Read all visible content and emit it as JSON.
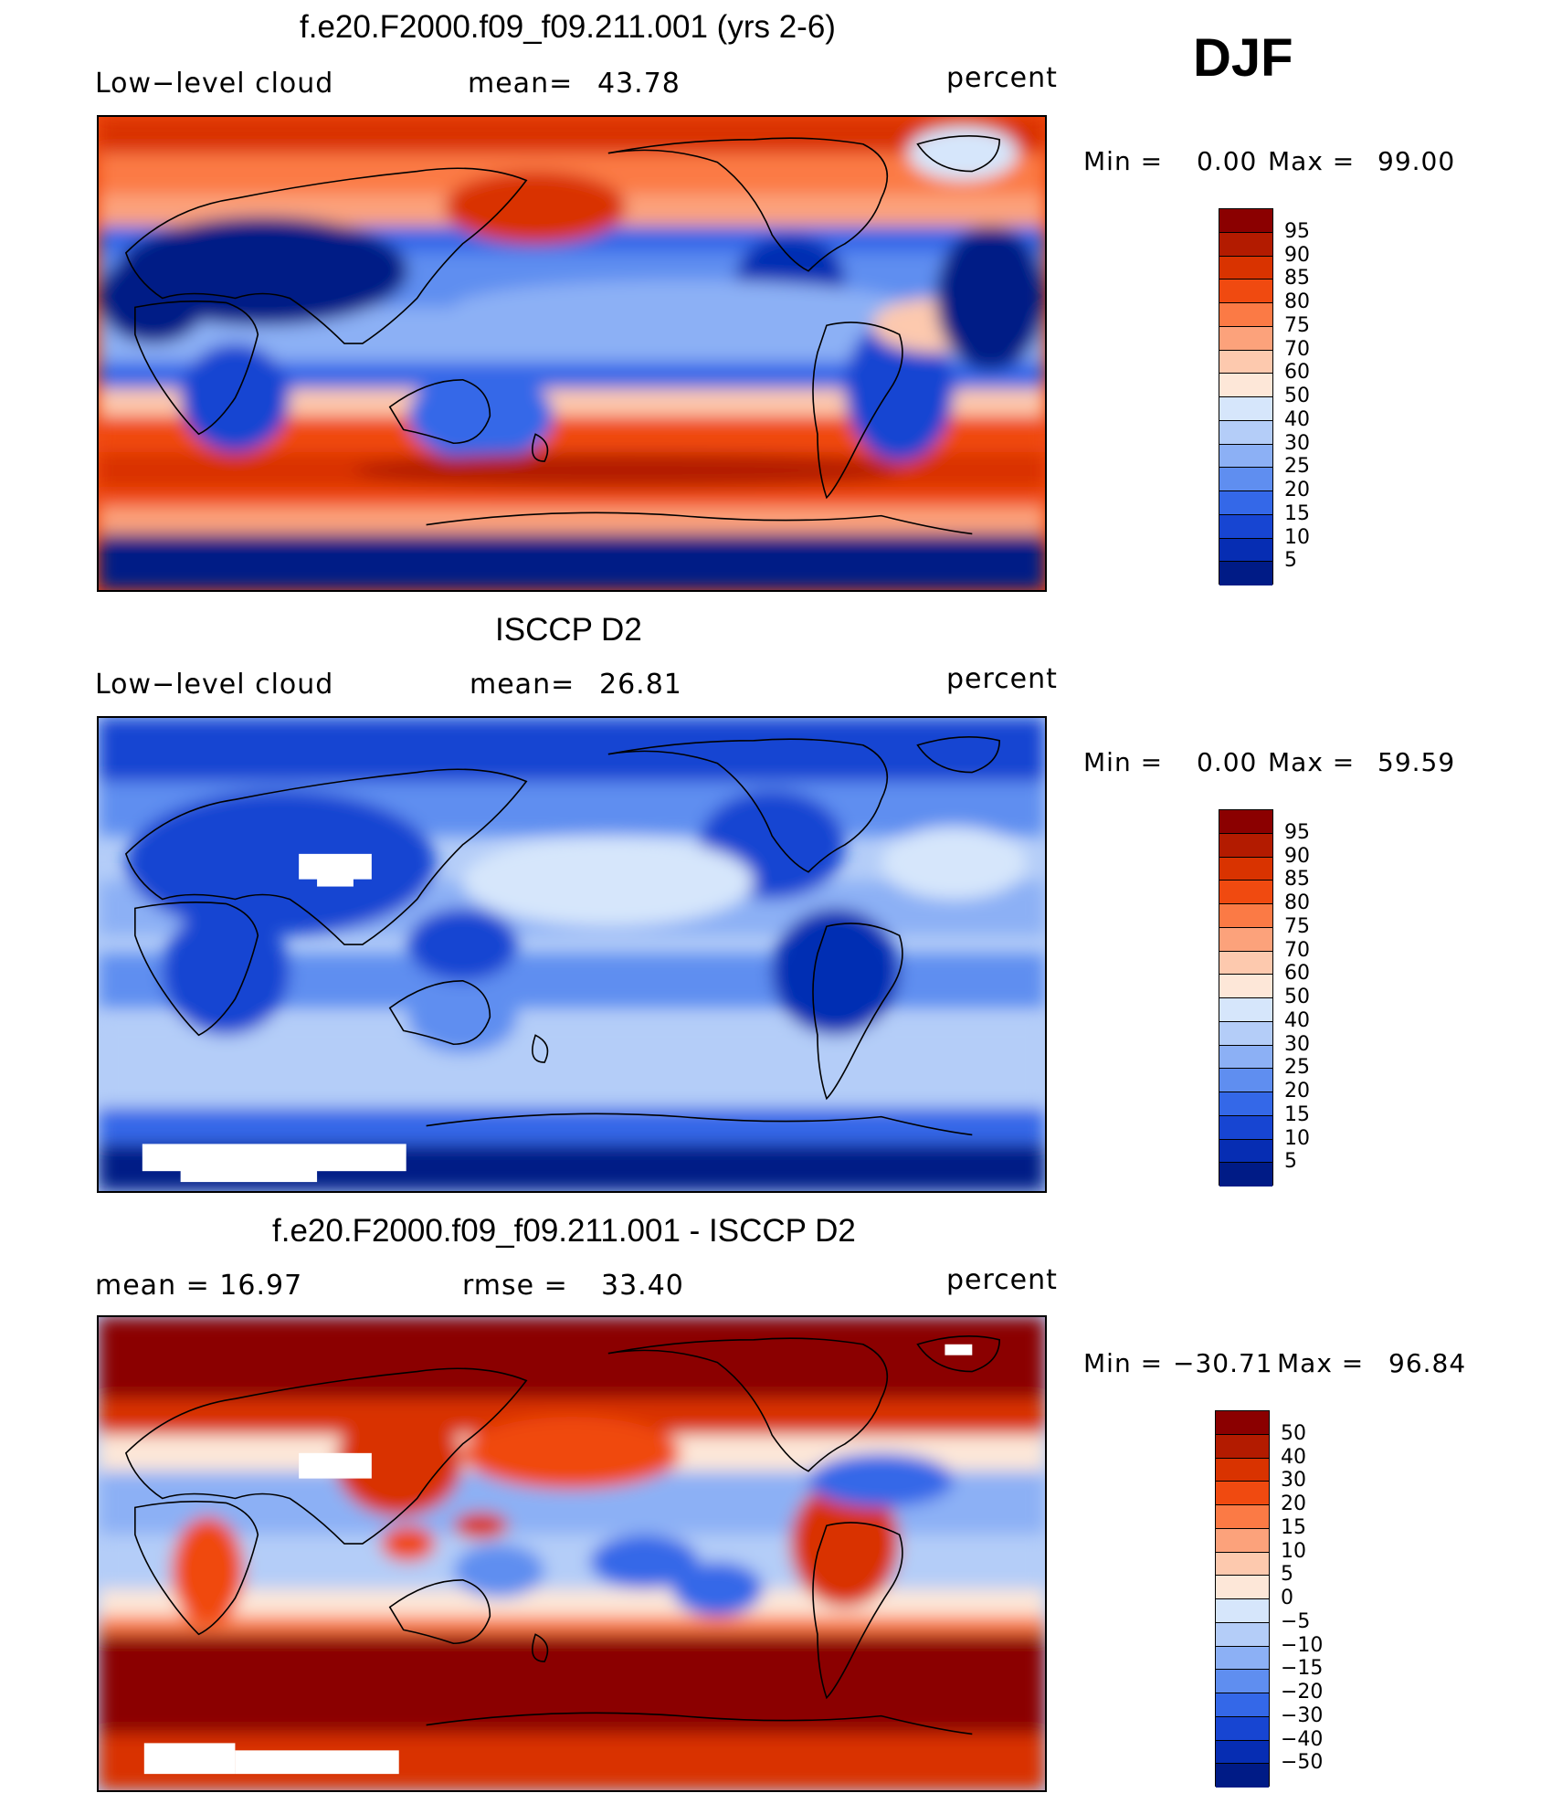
{
  "season": "DJF",
  "panels": [
    {
      "title": "f.e20.F2000.f09_f09.211.001 (yrs 2-6)",
      "left": "Low−level cloud",
      "center_label": "mean=",
      "center_value": "43.78",
      "units": "percent",
      "min_label": "Min  =",
      "min_value": "0.00",
      "max_label": "Max  =",
      "max_value": "99.00",
      "colorbar_ticks": [
        "95",
        "90",
        "85",
        "80",
        "75",
        "70",
        "60",
        "50",
        "40",
        "30",
        "25",
        "20",
        "15",
        "10",
        "5"
      ],
      "colorbar_colors": [
        "#8b0000",
        "#b31b00",
        "#d93300",
        "#f04a10",
        "#fb7a45",
        "#fca27b",
        "#fdc9ae",
        "#fde7d8",
        "#d6e6fb",
        "#b4cdf8",
        "#8cb0f5",
        "#5f8ef0",
        "#3468e8",
        "#1745d2",
        "#062db3",
        "#001b86"
      ]
    },
    {
      "title": "ISCCP D2",
      "left": "Low−level cloud",
      "center_label": "mean=",
      "center_value": "26.81",
      "units": "percent",
      "min_label": "Min  =",
      "min_value": "0.00",
      "max_label": "Max  =",
      "max_value": "59.59",
      "colorbar_ticks": [
        "95",
        "90",
        "85",
        "80",
        "75",
        "70",
        "60",
        "50",
        "40",
        "30",
        "25",
        "20",
        "15",
        "10",
        "5"
      ],
      "colorbar_colors": [
        "#8b0000",
        "#b31b00",
        "#d93300",
        "#f04a10",
        "#fb7a45",
        "#fca27b",
        "#fdc9ae",
        "#fde7d8",
        "#d6e6fb",
        "#b4cdf8",
        "#8cb0f5",
        "#5f8ef0",
        "#3468e8",
        "#1745d2",
        "#062db3",
        "#001b86"
      ]
    },
    {
      "title": "f.e20.F2000.f09_f09.211.001 - ISCCP D2",
      "left": "mean  =    16.97",
      "center_label": "rmse  =",
      "center_value": "33.40",
      "units": "percent",
      "min_label": "Min  =",
      "min_value": "−30.71",
      "max_label": "Max  =",
      "max_value": "96.84",
      "colorbar_ticks": [
        "50",
        "40",
        "30",
        "20",
        "15",
        "10",
        "5",
        "0",
        "−5",
        "−10",
        "−15",
        "−20",
        "−30",
        "−40",
        "−50"
      ],
      "colorbar_colors": [
        "#8b0000",
        "#b31b00",
        "#d93300",
        "#f04a10",
        "#fb7a45",
        "#fca27b",
        "#fdc9ae",
        "#fde7d8",
        "#d6e6fb",
        "#b4cdf8",
        "#8cb0f5",
        "#5f8ef0",
        "#3468e8",
        "#1745d2",
        "#062db3",
        "#001b86"
      ]
    }
  ]
}
